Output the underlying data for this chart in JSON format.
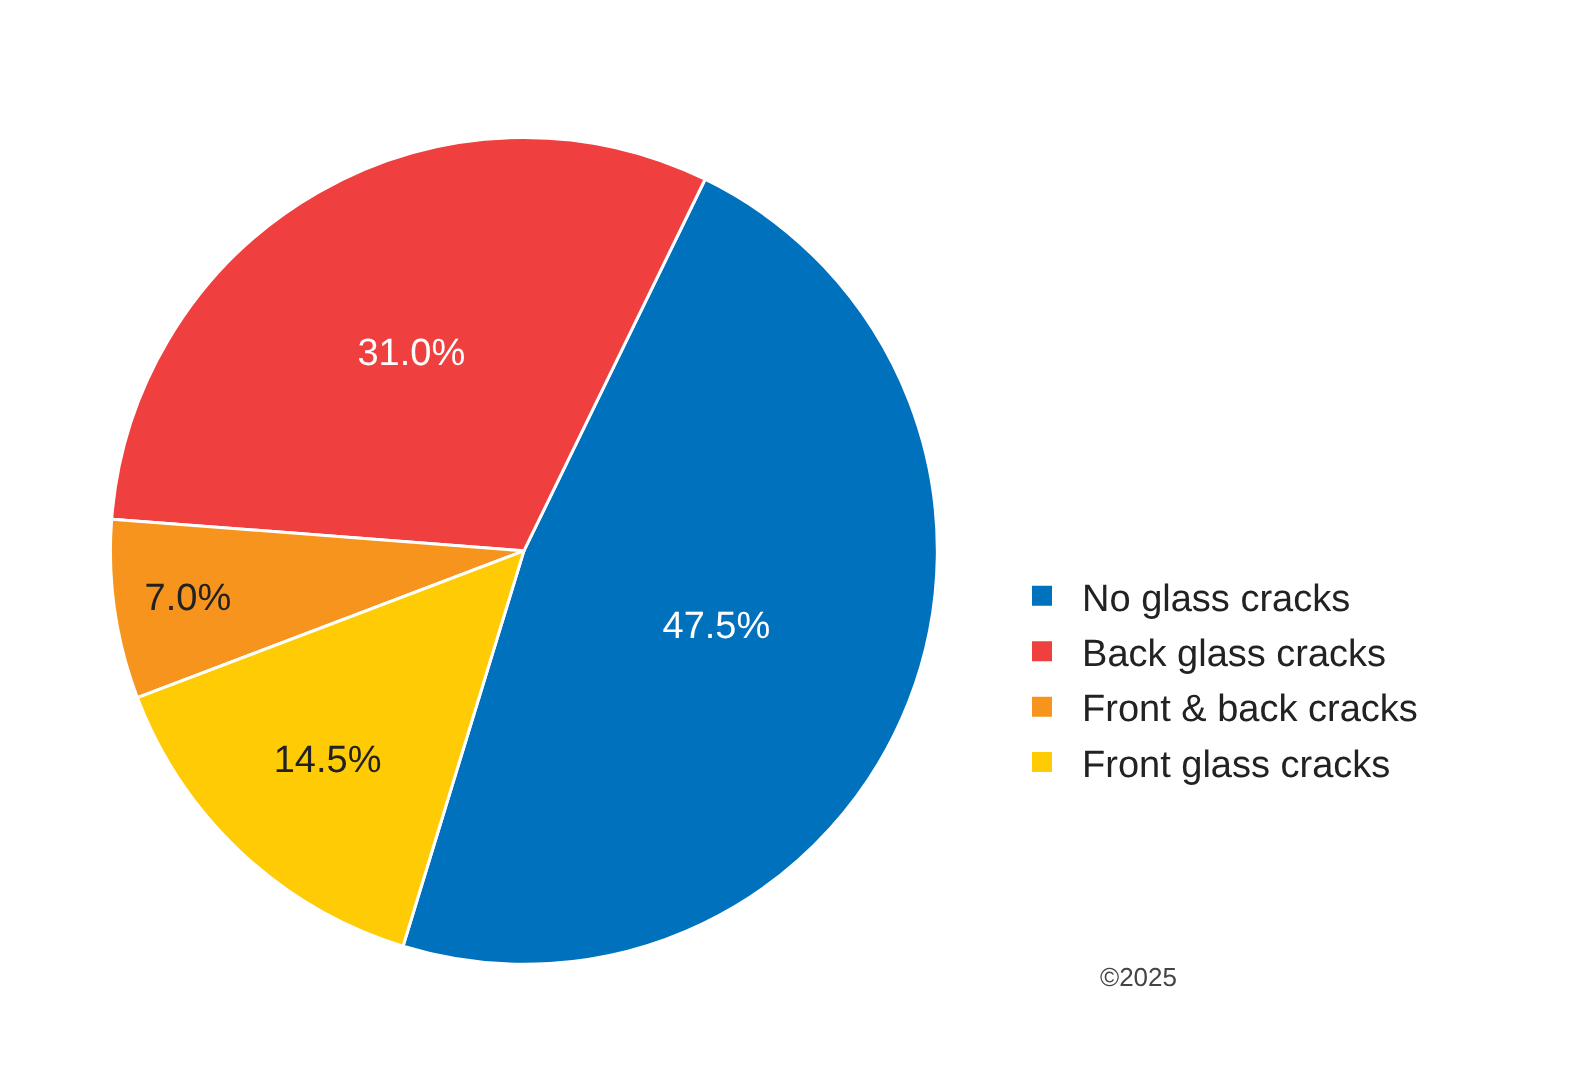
{
  "chart_data": {
    "type": "pie",
    "categories": [
      "No glass cracks",
      "Back glass cracks",
      "Front & back cracks",
      "Front glass cracks"
    ],
    "values": [
      47.5,
      31.0,
      7.0,
      14.5
    ],
    "colors": [
      "#0071bc",
      "#ef3f3f",
      "#f7941d",
      "#ffcb05"
    ],
    "value_labels": [
      "47.5%",
      "31.0%",
      "7.0%",
      "14.5%"
    ],
    "legend": "right",
    "annotations": [
      "©2025"
    ]
  }
}
